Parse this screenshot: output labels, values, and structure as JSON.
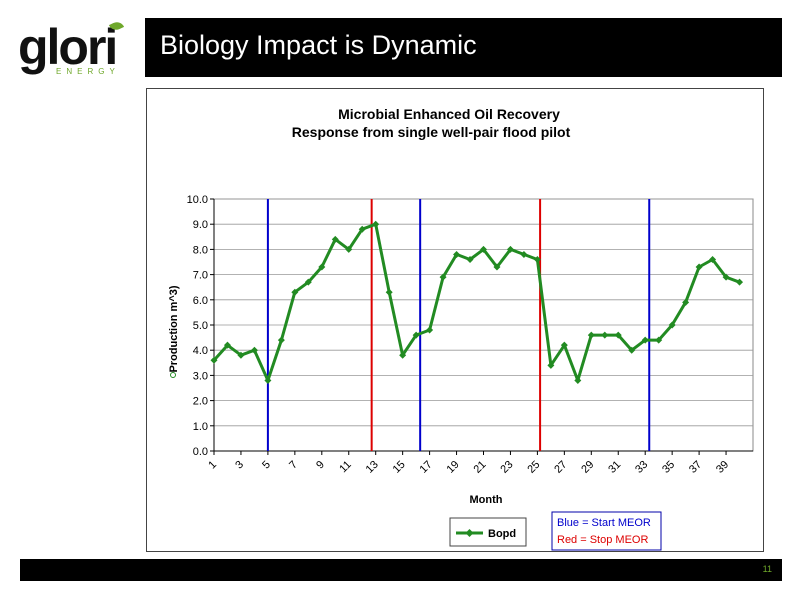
{
  "logo": {
    "main": "glori",
    "sub": "ENERGY"
  },
  "slide_title": "Biology Impact is Dynamic",
  "page_number": "11",
  "legend": {
    "blue_note": "Blue = Start MEOR",
    "red_note": "Red = Stop MEOR"
  },
  "colors": {
    "series": "#228b22",
    "start_line": "#0000cc",
    "stop_line": "#dd0000",
    "accent": "#6fa82b"
  },
  "chart_data": {
    "type": "line",
    "title_line1": "Microbial Enhanced Oil Recovery",
    "title_line2": "Response from single well-pair flood pilot",
    "xlabel": "Month",
    "ylabel": "Production m^3)",
    "ylim": [
      0,
      10
    ],
    "yticks": [
      0.0,
      1.0,
      2.0,
      3.0,
      4.0,
      5.0,
      6.0,
      7.0,
      8.0,
      9.0,
      10.0
    ],
    "xtick_labels": [
      "1",
      "3",
      "5",
      "7",
      "9",
      "11",
      "13",
      "15",
      "17",
      "19",
      "21",
      "23",
      "25",
      "27",
      "29",
      "31",
      "33",
      "35",
      "37",
      "39"
    ],
    "grid": true,
    "legend_position": "bottom",
    "series": [
      {
        "name": "Bopd",
        "x": [
          1,
          2,
          3,
          4,
          5,
          6,
          7,
          8,
          9,
          10,
          11,
          12,
          13,
          14,
          15,
          16,
          17,
          18,
          19,
          20,
          21,
          22,
          23,
          24,
          25,
          26,
          27,
          28,
          29,
          30,
          31,
          32,
          33,
          34,
          35,
          36,
          37,
          38,
          39,
          40
        ],
        "values": [
          3.6,
          4.2,
          3.8,
          4.0,
          2.8,
          4.4,
          6.3,
          6.7,
          7.3,
          8.4,
          8.0,
          8.8,
          9.0,
          6.3,
          3.8,
          4.6,
          4.8,
          6.9,
          7.8,
          7.6,
          8.0,
          7.3,
          8.0,
          7.8,
          7.6,
          3.4,
          4.2,
          2.8,
          4.6,
          4.6,
          4.6,
          4.0,
          4.4,
          4.4,
          5.0,
          5.9,
          7.3,
          7.6,
          6.9,
          6.7
        ]
      }
    ],
    "start_meor_x": [
      5.0,
      16.3,
      33.3
    ],
    "stop_meor_x": [
      12.7,
      25.2
    ]
  }
}
